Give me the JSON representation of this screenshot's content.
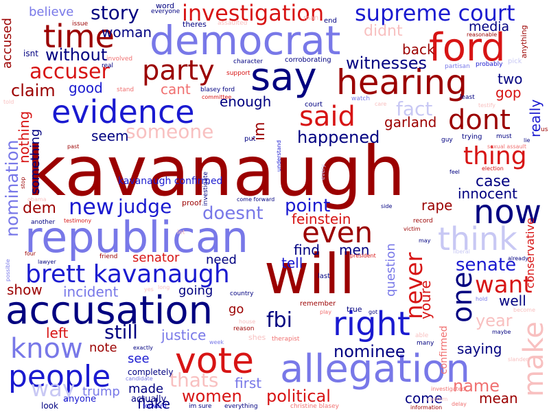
{
  "palette": {
    "dark_red": "#9b0000",
    "red": "#d71414",
    "light_red": "#f07070",
    "pale_red": "#f8c0c0",
    "dark_blue": "#000080",
    "blue": "#1a1ad0",
    "light_blue": "#7878e8",
    "pale_blue": "#c8c8f4"
  },
  "words": [
    {
      "text": "kavanaugh",
      "color": "dark_red"
    },
    {
      "text": "will",
      "color": "dark_red"
    },
    {
      "text": "republican",
      "color": "light_blue"
    },
    {
      "text": "accusation",
      "color": "dark_blue"
    },
    {
      "text": "democrat",
      "color": "light_blue"
    },
    {
      "text": "allegation",
      "color": "light_blue"
    },
    {
      "text": "evidence",
      "color": "blue"
    },
    {
      "text": "hearing",
      "color": "dark_red"
    },
    {
      "text": "ford",
      "color": "red"
    },
    {
      "text": "say",
      "color": "dark_blue"
    },
    {
      "text": "vote",
      "color": "red"
    },
    {
      "text": "brett kavanaugh",
      "color": "blue"
    },
    {
      "text": "right",
      "color": "blue"
    },
    {
      "text": "now",
      "color": "dark_blue"
    },
    {
      "text": "time",
      "color": "dark_red"
    },
    {
      "text": "party",
      "color": "dark_red"
    },
    {
      "text": "people",
      "color": "blue"
    },
    {
      "text": "supreme court",
      "color": "blue"
    },
    {
      "text": "investigation",
      "color": "red"
    },
    {
      "text": "even",
      "color": "dark_red"
    },
    {
      "text": "said",
      "color": "red"
    },
    {
      "text": "dont",
      "color": "dark_red"
    },
    {
      "text": "think",
      "color": "pale_blue"
    },
    {
      "text": "one",
      "color": "dark_blue"
    },
    {
      "text": "know",
      "color": "light_blue"
    },
    {
      "text": "never",
      "color": "red"
    },
    {
      "text": "make",
      "color": "pale_red"
    },
    {
      "text": "thing",
      "color": "red"
    },
    {
      "text": "accuser",
      "color": "red"
    },
    {
      "text": "someone",
      "color": "pale_red"
    },
    {
      "text": "new",
      "color": "blue"
    },
    {
      "text": "story",
      "color": "dark_blue"
    },
    {
      "text": "want",
      "color": "red"
    },
    {
      "text": "nomination",
      "color": "light_blue"
    },
    {
      "text": "judge",
      "color": "blue"
    },
    {
      "text": "witnesses",
      "color": "dark_blue"
    },
    {
      "text": "fbi",
      "color": "dark_blue"
    },
    {
      "text": "point",
      "color": "blue"
    },
    {
      "text": "doesnt",
      "color": "light_blue"
    },
    {
      "text": "senate",
      "color": "blue"
    },
    {
      "text": "year",
      "color": "pale_red"
    },
    {
      "text": "still",
      "color": "dark_blue"
    },
    {
      "text": "nominee",
      "color": "dark_blue"
    },
    {
      "text": "political",
      "color": "red"
    },
    {
      "text": "name",
      "color": "light_red"
    },
    {
      "text": "women",
      "color": "red"
    },
    {
      "text": "thats",
      "color": "pale_red"
    },
    {
      "text": "way",
      "color": "pale_blue"
    },
    {
      "text": "without",
      "color": "dark_blue"
    },
    {
      "text": "woman",
      "color": "dark_blue"
    },
    {
      "text": "back",
      "color": "dark_red"
    },
    {
      "text": "media",
      "color": "dark_blue"
    },
    {
      "text": "claim",
      "color": "dark_red"
    },
    {
      "text": "good",
      "color": "blue"
    },
    {
      "text": "cant",
      "color": "light_red"
    },
    {
      "text": "enough",
      "color": "dark_blue"
    },
    {
      "text": "happened",
      "color": "dark_blue"
    },
    {
      "text": "fact",
      "color": "pale_blue"
    },
    {
      "text": "garland",
      "color": "dark_red"
    },
    {
      "text": "gop",
      "color": "red"
    },
    {
      "text": "two",
      "color": "dark_blue"
    },
    {
      "text": "really",
      "color": "blue"
    },
    {
      "text": "seem",
      "color": "dark_blue"
    },
    {
      "text": "nothing",
      "color": "red"
    },
    {
      "text": "something",
      "color": "dark_blue"
    },
    {
      "text": "dem",
      "color": "dark_red"
    },
    {
      "text": "case",
      "color": "dark_blue"
    },
    {
      "text": "innocent",
      "color": "dark_blue"
    },
    {
      "text": "rape",
      "color": "dark_red"
    },
    {
      "text": "feinstein",
      "color": "red"
    },
    {
      "text": "find",
      "color": "dark_blue"
    },
    {
      "text": "men",
      "color": "dark_blue"
    },
    {
      "text": "senator",
      "color": "red"
    },
    {
      "text": "need",
      "color": "dark_blue"
    },
    {
      "text": "tell",
      "color": "blue"
    },
    {
      "text": "question",
      "color": "light_blue"
    },
    {
      "text": "youre",
      "color": "red"
    },
    {
      "text": "incident",
      "color": "light_blue"
    },
    {
      "text": "going",
      "color": "dark_blue"
    },
    {
      "text": "show",
      "color": "dark_red"
    },
    {
      "text": "well",
      "color": "dark_blue"
    },
    {
      "text": "justice",
      "color": "light_blue"
    },
    {
      "text": "left",
      "color": "red"
    },
    {
      "text": "note",
      "color": "dark_red"
    },
    {
      "text": "see",
      "color": "blue"
    },
    {
      "text": "saying",
      "color": "dark_blue"
    },
    {
      "text": "first",
      "color": "light_blue"
    },
    {
      "text": "come",
      "color": "dark_blue"
    },
    {
      "text": "mean",
      "color": "dark_red"
    },
    {
      "text": "made",
      "color": "dark_blue"
    },
    {
      "text": "trump",
      "color": "light_blue"
    },
    {
      "text": "flake",
      "color": "dark_blue"
    },
    {
      "text": "conservative",
      "color": "red"
    },
    {
      "text": "confirmed",
      "color": "light_red"
    },
    {
      "text": "im",
      "color": "dark_red"
    },
    {
      "text": "believe",
      "color": "light_blue"
    },
    {
      "text": "accused",
      "color": "dark_red"
    },
    {
      "text": "didnt",
      "color": "pale_red"
    },
    {
      "text": "kavanaugh confirmed",
      "color": "blue"
    },
    {
      "text": "go",
      "color": "dark_red"
    },
    {
      "text": "anyone",
      "color": "blue"
    },
    {
      "text": "actually",
      "color": "dark_blue"
    },
    {
      "text": "completely",
      "color": "dark_blue"
    },
    {
      "text": "look",
      "color": "dark_blue"
    },
    {
      "text": "pick",
      "color": "pale_blue"
    },
    {
      "text": "word",
      "color": "dark_blue"
    },
    {
      "text": "everyone",
      "color": "dark_blue"
    },
    {
      "text": "issue",
      "color": "dark_red"
    },
    {
      "text": "theres",
      "color": "dark_blue"
    },
    {
      "text": "assaulted",
      "color": "pale_red"
    },
    {
      "text": "man",
      "color": "pale_red"
    },
    {
      "text": "end",
      "color": "dark_blue"
    },
    {
      "text": "involved",
      "color": "light_red"
    },
    {
      "text": "real",
      "color": "dark_blue"
    },
    {
      "text": "isnt",
      "color": "dark_blue"
    },
    {
      "text": "character",
      "color": "dark_blue"
    },
    {
      "text": "corroborating",
      "color": "dark_blue"
    },
    {
      "text": "support",
      "color": "red"
    },
    {
      "text": "partisan",
      "color": "light_blue"
    },
    {
      "text": "probably",
      "color": "blue"
    },
    {
      "text": "reasonable",
      "color": "dark_red"
    },
    {
      "text": "anything",
      "color": "dark_red"
    },
    {
      "text": "stand",
      "color": "light_red"
    },
    {
      "text": "blasey ford",
      "color": "dark_blue"
    },
    {
      "text": "committee",
      "color": "red"
    },
    {
      "text": "watch",
      "color": "light_blue"
    },
    {
      "text": "care",
      "color": "pale_red"
    },
    {
      "text": "least",
      "color": "dark_blue"
    },
    {
      "text": "testify",
      "color": "pale_red"
    },
    {
      "text": "told",
      "color": "pale_red"
    },
    {
      "text": "court",
      "color": "dark_blue"
    },
    {
      "text": "past",
      "color": "dark_red"
    },
    {
      "text": "put",
      "color": "dark_blue"
    },
    {
      "text": "understand",
      "color": "blue"
    },
    {
      "text": "sexual assault",
      "color": "light_red"
    },
    {
      "text": "guy",
      "color": "dark_blue"
    },
    {
      "text": "trying",
      "color": "dark_blue"
    },
    {
      "text": "must",
      "color": "dark_blue"
    },
    {
      "text": "lie",
      "color": "dark_blue"
    },
    {
      "text": "us",
      "color": "dark_red"
    },
    {
      "text": "stop",
      "color": "dark_red"
    },
    {
      "text": "investigate",
      "color": "dark_blue"
    },
    {
      "text": "every",
      "color": "pale_blue"
    },
    {
      "text": "election",
      "color": "red"
    },
    {
      "text": "feel",
      "color": "dark_blue"
    },
    {
      "text": "obama",
      "color": "pale_red"
    },
    {
      "text": "proof",
      "color": "dark_red"
    },
    {
      "text": "come forward",
      "color": "dark_blue"
    },
    {
      "text": "another",
      "color": "dark_blue"
    },
    {
      "text": "testimony",
      "color": "red"
    },
    {
      "text": "side",
      "color": "dark_blue"
    },
    {
      "text": "record",
      "color": "dark_red"
    },
    {
      "text": "victim",
      "color": "dark_red"
    },
    {
      "text": "may",
      "color": "dark_blue"
    },
    {
      "text": "liberal",
      "color": "pale_blue"
    },
    {
      "text": "let",
      "color": "pale_red"
    },
    {
      "text": "friend",
      "color": "dark_red"
    },
    {
      "text": "four",
      "color": "dark_red"
    },
    {
      "text": "lawyer",
      "color": "dark_blue"
    },
    {
      "text": "president",
      "color": "red"
    },
    {
      "text": "possible",
      "color": "light_blue"
    },
    {
      "text": "already",
      "color": "dark_blue"
    },
    {
      "text": "last",
      "color": "dark_blue"
    },
    {
      "text": "country",
      "color": "dark_blue"
    },
    {
      "text": "long",
      "color": "pale_red"
    },
    {
      "text": "yes",
      "color": "pale_red"
    },
    {
      "text": "hold",
      "color": "light_blue"
    },
    {
      "text": "become",
      "color": "pale_red"
    },
    {
      "text": "remember",
      "color": "dark_red"
    },
    {
      "text": "true",
      "color": "dark_blue"
    },
    {
      "text": "play",
      "color": "light_red"
    },
    {
      "text": "got",
      "color": "dark_blue"
    },
    {
      "text": "house",
      "color": "pale_red"
    },
    {
      "text": "reason",
      "color": "dark_red"
    },
    {
      "text": "week",
      "color": "light_blue"
    },
    {
      "text": "shes",
      "color": "pale_red"
    },
    {
      "text": "therapist",
      "color": "light_red"
    },
    {
      "text": "able",
      "color": "pale_red"
    },
    {
      "text": "maybe",
      "color": "dark_blue"
    },
    {
      "text": "many",
      "color": "dark_blue"
    },
    {
      "text": "exactly",
      "color": "dark_blue"
    },
    {
      "text": "candidate",
      "color": "light_blue"
    },
    {
      "text": "slander",
      "color": "pale_red"
    },
    {
      "text": "forward",
      "color": "blue"
    },
    {
      "text": "im sure",
      "color": "dark_blue"
    },
    {
      "text": "everything",
      "color": "dark_blue"
    },
    {
      "text": "christine blasey",
      "color": "light_red"
    },
    {
      "text": "information",
      "color": "dark_red"
    },
    {
      "text": "investigated",
      "color": "light_red"
    },
    {
      "text": "confirm",
      "color": "pale_red"
    },
    {
      "text": "delay",
      "color": "light_red"
    }
  ]
}
